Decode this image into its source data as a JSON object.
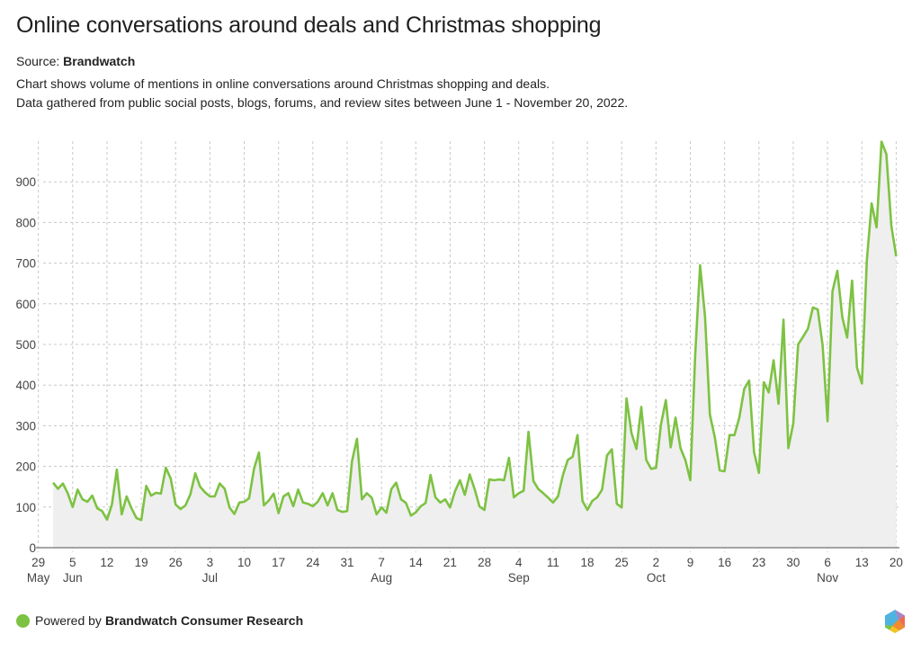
{
  "header": {
    "title": "Online conversations around deals and Christmas shopping",
    "source_label": "Source:",
    "source_name": "Brandwatch",
    "description_line1": "Chart shows volume of mentions in online conversations around Christmas shopping and deals.",
    "description_line2": "Data gathered from public social posts, blogs, forums, and review sites between June 1 - November 20, 2022."
  },
  "footer": {
    "powered_by": "Powered by",
    "brand": "Brandwatch Consumer Research",
    "dot_color": "#7dc242",
    "logo_icon": "brandwatch-hexagon-logo-icon"
  },
  "chart_data": {
    "type": "area",
    "title": "Online conversations around deals and Christmas shopping",
    "xlabel": "",
    "ylabel": "",
    "series_name": "Mentions",
    "start_date": "2022-06-01",
    "end_date": "2022-11-20",
    "interval": "day",
    "line_color": "#7dc242",
    "fill_color": "#efefef",
    "ylim": [
      0,
      1000
    ],
    "y_ticks": [
      0,
      100,
      200,
      300,
      400,
      500,
      600,
      700,
      800,
      900
    ],
    "grid": true,
    "x_ticks": [
      {
        "day_offset": -3,
        "label": "29",
        "month": "May"
      },
      {
        "day_offset": 4,
        "label": "5",
        "month": "Jun"
      },
      {
        "day_offset": 11,
        "label": "12",
        "month": ""
      },
      {
        "day_offset": 18,
        "label": "19",
        "month": ""
      },
      {
        "day_offset": 25,
        "label": "26",
        "month": ""
      },
      {
        "day_offset": 32,
        "label": "3",
        "month": "Jul"
      },
      {
        "day_offset": 39,
        "label": "10",
        "month": ""
      },
      {
        "day_offset": 46,
        "label": "17",
        "month": ""
      },
      {
        "day_offset": 53,
        "label": "24",
        "month": ""
      },
      {
        "day_offset": 60,
        "label": "31",
        "month": ""
      },
      {
        "day_offset": 67,
        "label": "7",
        "month": "Aug"
      },
      {
        "day_offset": 74,
        "label": "14",
        "month": ""
      },
      {
        "day_offset": 81,
        "label": "21",
        "month": ""
      },
      {
        "day_offset": 88,
        "label": "28",
        "month": ""
      },
      {
        "day_offset": 95,
        "label": "4",
        "month": "Sep"
      },
      {
        "day_offset": 102,
        "label": "11",
        "month": ""
      },
      {
        "day_offset": 109,
        "label": "18",
        "month": ""
      },
      {
        "day_offset": 116,
        "label": "25",
        "month": ""
      },
      {
        "day_offset": 123,
        "label": "2",
        "month": "Oct"
      },
      {
        "day_offset": 130,
        "label": "9",
        "month": ""
      },
      {
        "day_offset": 137,
        "label": "16",
        "month": ""
      },
      {
        "day_offset": 144,
        "label": "23",
        "month": ""
      },
      {
        "day_offset": 151,
        "label": "30",
        "month": ""
      },
      {
        "day_offset": 158,
        "label": "6",
        "month": "Nov"
      },
      {
        "day_offset": 165,
        "label": "13",
        "month": ""
      },
      {
        "day_offset": 172,
        "label": "20",
        "month": ""
      }
    ],
    "values": [
      160,
      145,
      158,
      134,
      100,
      143,
      119,
      113,
      128,
      97,
      90,
      69,
      106,
      192,
      82,
      126,
      97,
      73,
      68,
      152,
      128,
      135,
      133,
      197,
      170,
      106,
      95,
      104,
      131,
      183,
      150,
      136,
      126,
      126,
      158,
      145,
      99,
      83,
      111,
      113,
      122,
      195,
      234,
      104,
      116,
      133,
      85,
      126,
      134,
      102,
      143,
      111,
      108,
      102,
      113,
      134,
      104,
      134,
      93,
      88,
      90,
      213,
      268,
      119,
      134,
      123,
      82,
      99,
      86,
      144,
      160,
      119,
      110,
      79,
      87,
      102,
      110,
      179,
      124,
      111,
      119,
      99,
      139,
      166,
      130,
      180,
      144,
      101,
      93,
      168,
      166,
      168,
      166,
      221,
      124,
      134,
      140,
      285,
      164,
      144,
      134,
      123,
      111,
      126,
      178,
      216,
      224,
      277,
      115,
      93,
      115,
      124,
      143,
      227,
      242,
      108,
      99,
      367,
      282,
      243,
      346,
      216,
      194,
      196,
      302,
      363,
      247,
      320,
      245,
      215,
      166,
      476,
      695,
      568,
      327,
      271,
      190,
      188,
      277,
      277,
      320,
      391,
      411,
      235,
      184,
      407,
      382,
      461,
      354,
      561,
      245,
      306,
      500,
      519,
      539,
      591,
      586,
      498,
      311,
      631,
      681,
      567,
      517,
      657,
      443,
      404,
      704,
      847,
      788,
      999,
      968,
      792,
      717
    ]
  }
}
